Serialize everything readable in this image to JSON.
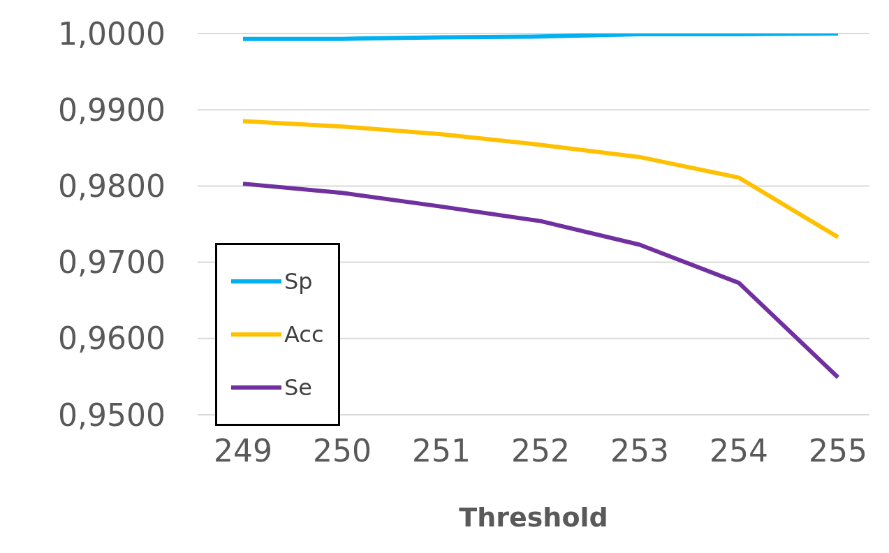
{
  "chart_data": {
    "type": "line",
    "xlabel": "Threshold",
    "categories": [
      "249",
      "250",
      "251",
      "252",
      "253",
      "254",
      "255"
    ],
    "series": [
      {
        "name": "Sp",
        "color": "#00b0f0",
        "values": [
          0.9993,
          0.9993,
          0.9995,
          0.9996,
          0.9999,
          0.9999,
          1.0
        ]
      },
      {
        "name": "Acc",
        "color": "#ffc000",
        "values": [
          0.9885,
          0.9878,
          0.9868,
          0.9854,
          0.9838,
          0.9811,
          0.9733
        ]
      },
      {
        "name": "Se",
        "color": "#7030a0",
        "values": [
          0.9803,
          0.9791,
          0.9773,
          0.9754,
          0.9723,
          0.9673,
          0.9549
        ]
      }
    ],
    "ylim": [
      0.95,
      1.0
    ],
    "yticks": [
      {
        "value": 0.95,
        "label": "0,9500"
      },
      {
        "value": 0.96,
        "label": "0,9600"
      },
      {
        "value": 0.97,
        "label": "0,9700"
      },
      {
        "value": 0.98,
        "label": "0,9800"
      },
      {
        "value": 0.99,
        "label": "0,9900"
      },
      {
        "value": 1.0,
        "label": "1,0000"
      }
    ],
    "grid": "y",
    "legend": "bottom left",
    "marker": "none",
    "line_style": "solid"
  }
}
